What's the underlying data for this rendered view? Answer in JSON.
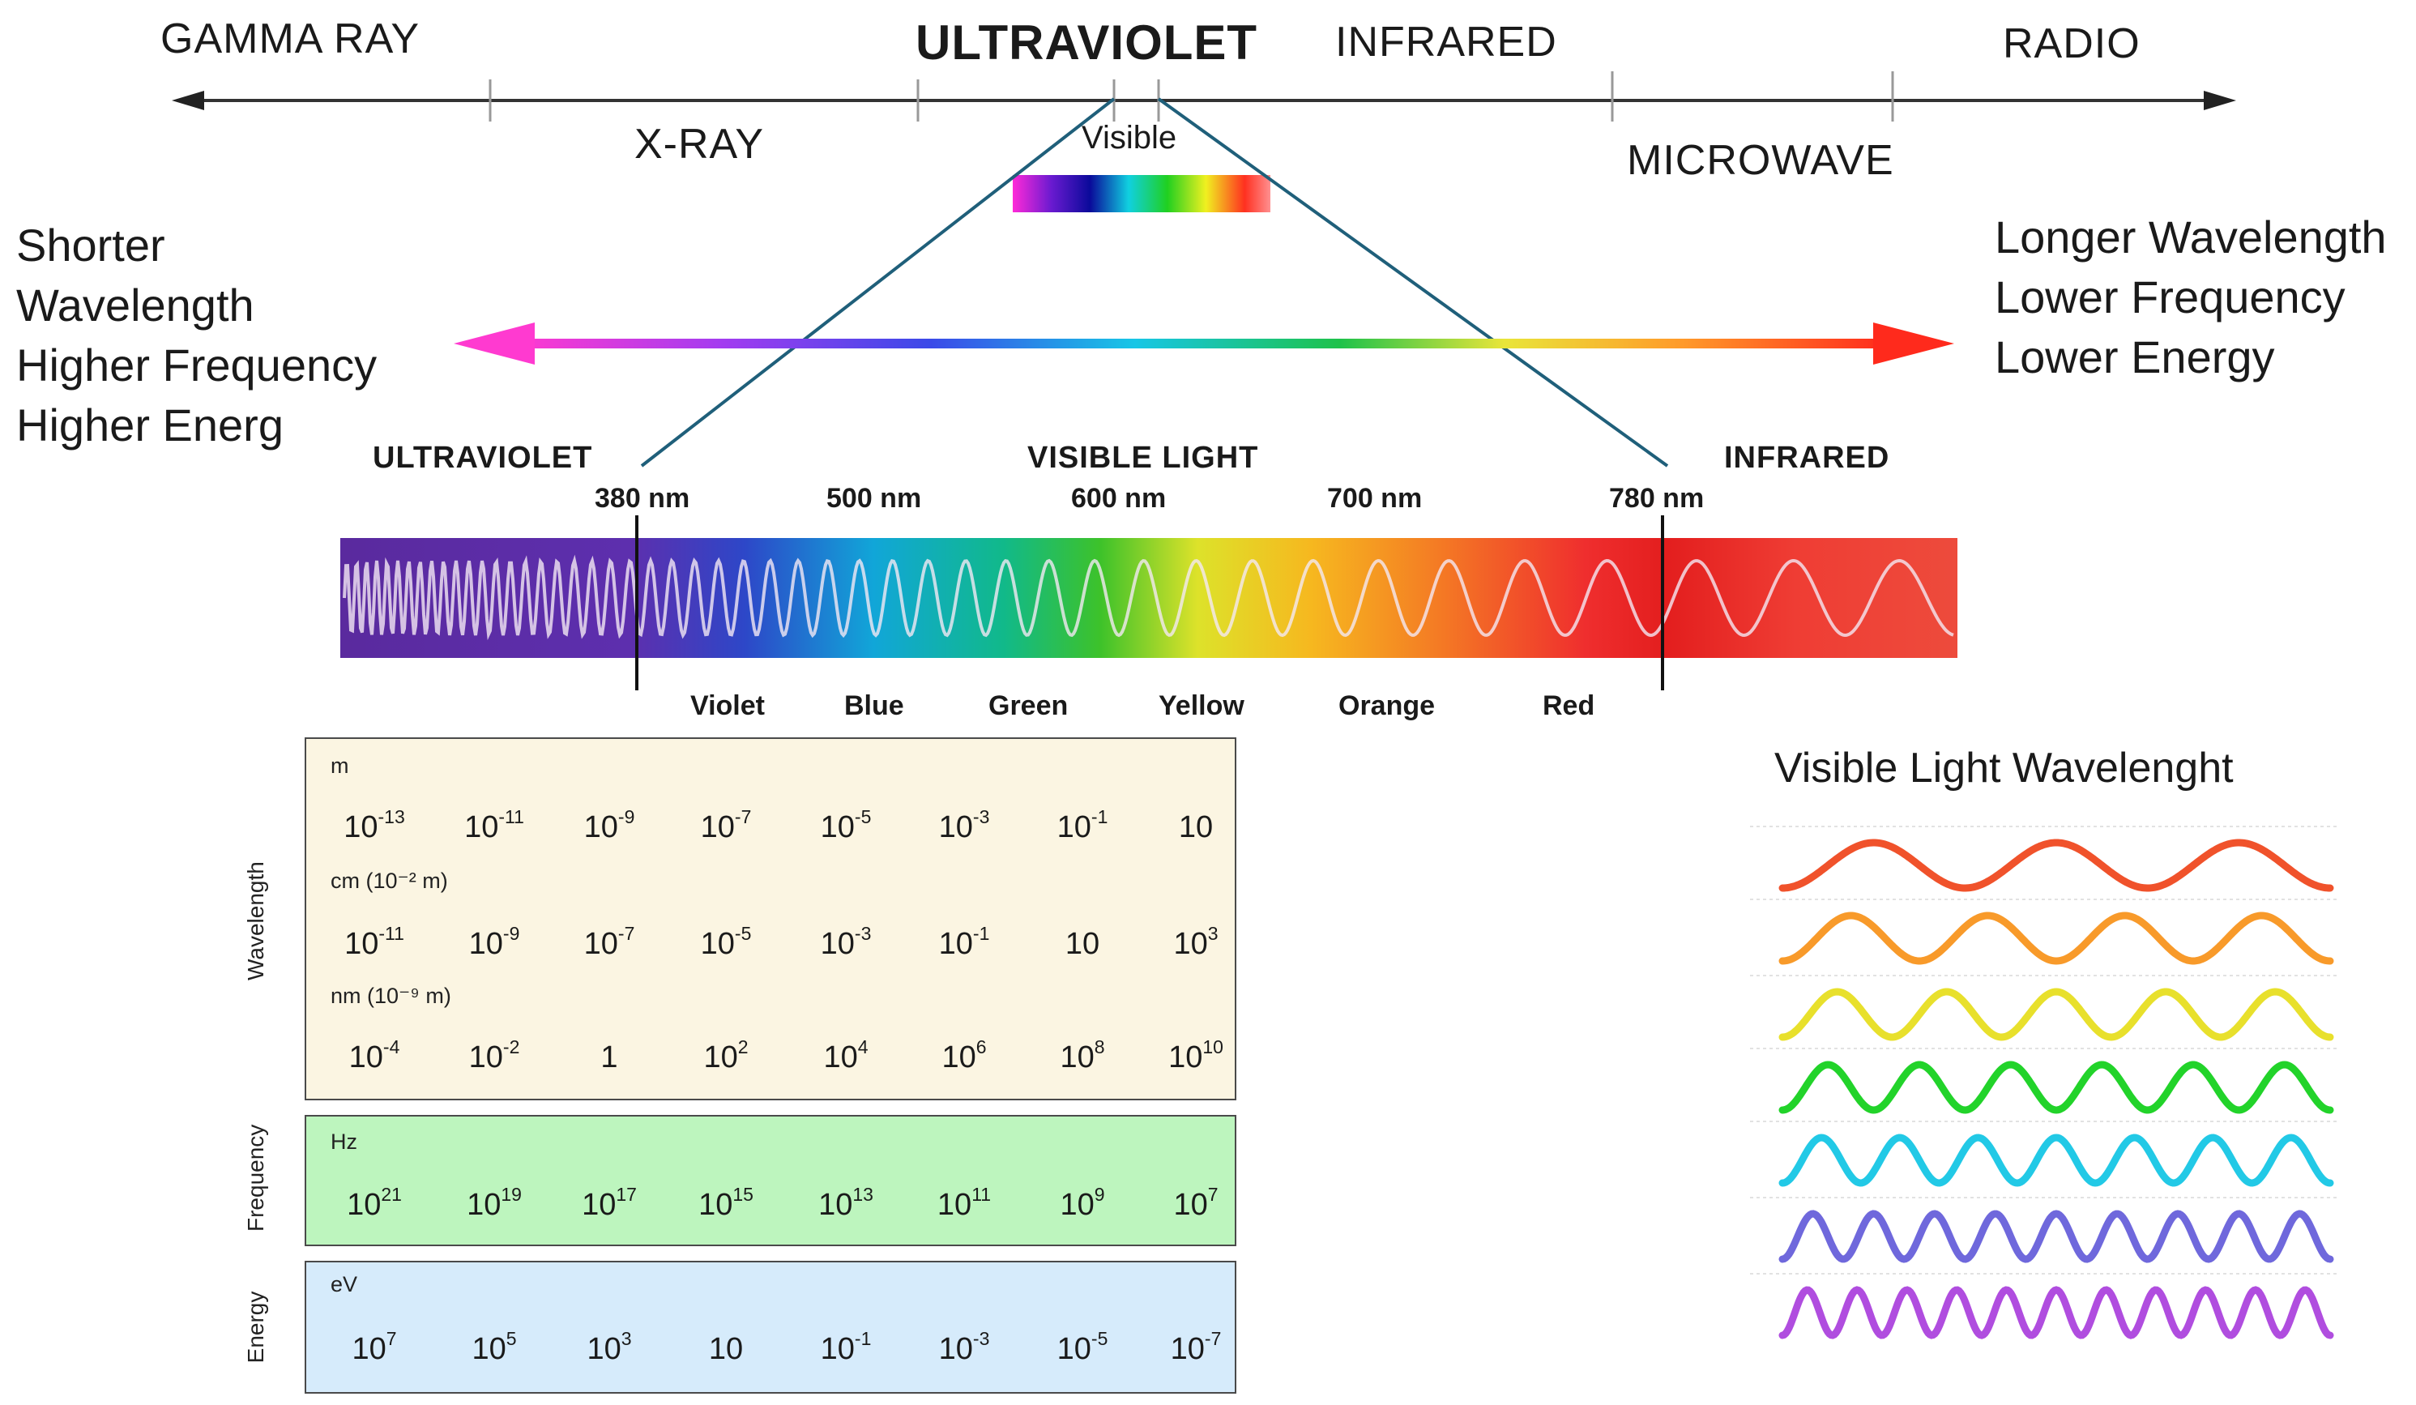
{
  "top_scale": {
    "above_axis": [
      "GAMMA RAY",
      "ULTRAVIOLET",
      "INFRARED",
      "RADIO"
    ],
    "below_axis": [
      "X-RAY",
      "Visible",
      "MICROWAVE"
    ]
  },
  "left_side": [
    "Shorter",
    "Wavelength",
    "Higher Frequency",
    "Higher Energ"
  ],
  "right_side": [
    "Longer Wavelength",
    "Lower Frequency",
    "Lower Energy"
  ],
  "spectrum": {
    "region_labels": [
      "ULTRAVIOLET",
      "VISIBLE LIGHT",
      "INFRARED"
    ],
    "nm_labels": [
      "380 nm",
      "500 nm",
      "600 nm",
      "700 nm",
      "780 nm"
    ],
    "color_labels": [
      "Violet",
      "Blue",
      "Green",
      "Yellow",
      "Orange",
      "Red"
    ]
  },
  "scales": {
    "wavelength": {
      "axis_label": "Wavelength",
      "rows": [
        {
          "unit": "m",
          "ticks": [
            [
              "10",
              "-13"
            ],
            [
              "10",
              "-11"
            ],
            [
              "10",
              "-9"
            ],
            [
              "10",
              "-7"
            ],
            [
              "10",
              "-5"
            ],
            [
              "10",
              "-3"
            ],
            [
              "10",
              "-1"
            ],
            [
              "10",
              ""
            ]
          ]
        },
        {
          "unit": "cm (10⁻² m)",
          "ticks": [
            [
              "10",
              "-11"
            ],
            [
              "10",
              "-9"
            ],
            [
              "10",
              "-7"
            ],
            [
              "10",
              "-5"
            ],
            [
              "10",
              "-3"
            ],
            [
              "10",
              "-1"
            ],
            [
              "10",
              ""
            ],
            [
              "10",
              "3"
            ]
          ]
        },
        {
          "unit": "nm (10⁻⁹ m)",
          "ticks": [
            [
              "10",
              "-4"
            ],
            [
              "10",
              "-2"
            ],
            [
              "1",
              ""
            ],
            [
              "10",
              "2"
            ],
            [
              "10",
              "4"
            ],
            [
              "10",
              "6"
            ],
            [
              "10",
              "8"
            ],
            [
              "10",
              "10"
            ]
          ]
        }
      ]
    },
    "frequency": {
      "axis_label": "Frequency",
      "rows": [
        {
          "unit": "Hz",
          "ticks": [
            [
              "10",
              "21"
            ],
            [
              "10",
              "19"
            ],
            [
              "10",
              "17"
            ],
            [
              "10",
              "15"
            ],
            [
              "10",
              "13"
            ],
            [
              "10",
              "11"
            ],
            [
              "10",
              "9"
            ],
            [
              "10",
              "7"
            ]
          ]
        }
      ]
    },
    "energy": {
      "axis_label": "Energy",
      "rows": [
        {
          "unit": "eV",
          "ticks": [
            [
              "10",
              "7"
            ],
            [
              "10",
              "5"
            ],
            [
              "10",
              "3"
            ],
            [
              "10",
              ""
            ],
            [
              "10",
              "-1"
            ],
            [
              "10",
              "-3"
            ],
            [
              "10",
              "-5"
            ],
            [
              "10",
              "-7"
            ]
          ]
        }
      ]
    }
  },
  "visible_wavelength": {
    "title": "Visible Light Wavelenght",
    "waves": [
      {
        "color": "#f0522b",
        "cycles": 3
      },
      {
        "color": "#f89a2a",
        "cycles": 4
      },
      {
        "color": "#e8e02c",
        "cycles": 5
      },
      {
        "color": "#22d32a",
        "cycles": 6
      },
      {
        "color": "#22c9e6",
        "cycles": 7
      },
      {
        "color": "#6f68dc",
        "cycles": 9
      },
      {
        "color": "#b04ddf",
        "cycles": 11
      }
    ]
  },
  "colors": {
    "axis_line": "#333333",
    "connector": "#1f5f7a",
    "wavelength_panel": "#fbf5e2",
    "frequency_panel": "#bdf5be",
    "energy_panel": "#d6ebfb"
  }
}
